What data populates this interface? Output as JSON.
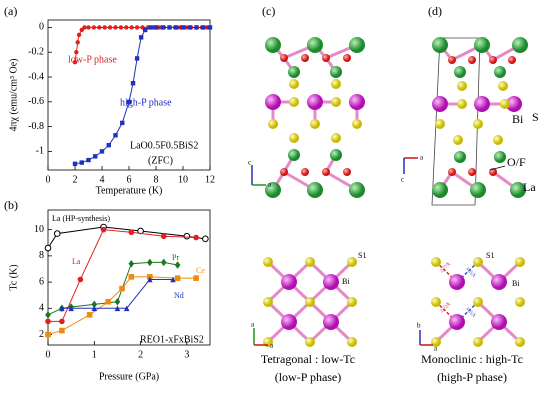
{
  "chart_data": [
    {
      "type": "line",
      "panel_label": "(a)",
      "xlabel": "Temperature (K)",
      "ylabel": "4πχ (emu/cm³ Oe)",
      "xlim": [
        0,
        12
      ],
      "xticks": [
        0,
        2,
        4,
        6,
        8,
        10,
        12
      ],
      "ylim": [
        -1.15,
        0.06
      ],
      "yticks": [
        0,
        -0.2,
        -0.4,
        -0.6,
        -0.8,
        -1
      ],
      "annotations": [
        {
          "text": "low-P phase",
          "color": "#e02020"
        },
        {
          "text": "high-P phase",
          "color": "#2030c0"
        },
        {
          "text": "LaO0.5F0.5BiS2",
          "color": "#000000"
        },
        {
          "text": "(ZFC)",
          "color": "#000000"
        }
      ],
      "series": [
        {
          "name": "low-P phase",
          "color": "#e02020",
          "marker": "circle",
          "x": [
            2.0,
            2.1,
            2.2,
            2.3,
            2.5,
            2.7,
            3.0,
            3.4,
            3.8,
            4.2,
            4.6,
            5.0,
            5.4,
            5.8,
            6.2,
            6.6,
            7.0,
            7.4,
            7.8,
            8.2,
            8.6,
            9.0,
            9.4,
            9.8,
            10.2,
            10.6,
            11.0,
            11.4,
            11.8
          ],
          "values": [
            -0.28,
            -0.2,
            -0.12,
            -0.06,
            -0.02,
            0,
            0,
            0,
            0,
            0,
            0,
            0,
            0,
            0,
            0,
            0,
            0,
            0,
            0,
            0,
            0,
            0,
            0,
            0,
            0,
            0,
            0,
            0,
            0
          ]
        },
        {
          "name": "high-P phase",
          "color": "#2030c0",
          "marker": "square",
          "x": [
            2.0,
            2.5,
            3.0,
            3.5,
            4.0,
            4.5,
            5.0,
            5.5,
            6.0,
            6.3,
            6.6,
            6.9,
            7.2,
            7.6,
            8.0,
            8.5,
            9.0,
            9.5,
            10.0,
            10.5,
            11.0,
            11.5,
            12.0
          ],
          "values": [
            -1.1,
            -1.09,
            -1.07,
            -1.04,
            -1.0,
            -0.95,
            -0.87,
            -0.77,
            -0.6,
            -0.45,
            -0.25,
            -0.08,
            -0.02,
            0,
            0,
            0,
            0,
            0,
            0,
            0,
            0,
            0,
            0
          ]
        }
      ]
    },
    {
      "type": "line",
      "panel_label": "(b)",
      "xlabel": "Pressure (GPa)",
      "ylabel": "Tc (K)",
      "xlim": [
        0,
        3.5
      ],
      "xticks": [
        0,
        1,
        2,
        3
      ],
      "ylim": [
        1.2,
        11.5
      ],
      "yticks": [
        2,
        4,
        6,
        8,
        10
      ],
      "annotations": [
        {
          "text": "REO1-xFxBiS2",
          "color": "#000000"
        }
      ],
      "series": [
        {
          "name": "La (HP-synthesis)",
          "color": "#000000",
          "marker": "circle-open",
          "x": [
            0,
            0.2,
            1.2,
            2.0,
            3.0,
            3.4
          ],
          "values": [
            8.6,
            9.7,
            10.2,
            9.9,
            9.5,
            9.3
          ]
        },
        {
          "name": "La",
          "color": "#e02020",
          "marker": "circle",
          "x": [
            0,
            0.3,
            0.7,
            1.2,
            1.8,
            2.5,
            3.2
          ],
          "values": [
            3.0,
            3.0,
            6.2,
            10.0,
            9.8,
            9.5,
            9.4
          ]
        },
        {
          "name": "Pr",
          "color": "#1a7a1a",
          "marker": "diamond",
          "x": [
            0,
            0.3,
            0.5,
            1.0,
            1.5,
            1.8,
            2.2,
            2.5,
            2.8
          ],
          "values": [
            3.5,
            4.0,
            4.1,
            4.3,
            4.5,
            7.4,
            7.5,
            7.5,
            7.3
          ]
        },
        {
          "name": "Ce",
          "color": "#f08a10",
          "marker": "square",
          "x": [
            0,
            0.3,
            0.9,
            1.3,
            1.6,
            1.8,
            2.2,
            2.8,
            3.2
          ],
          "values": [
            2.0,
            2.3,
            3.5,
            4.5,
            5.5,
            6.4,
            6.4,
            6.3,
            6.3
          ]
        },
        {
          "name": "Nd",
          "color": "#2030c0",
          "marker": "triangle",
          "x": [
            0.3,
            0.5,
            1.0,
            1.5,
            1.7,
            2.2,
            2.7
          ],
          "values": [
            4.0,
            4.0,
            4.0,
            4.0,
            4.0,
            6.2,
            6.2
          ]
        }
      ]
    }
  ],
  "panel_c": {
    "label": "(c)",
    "axes_top": [
      "c",
      "a"
    ],
    "axes_bottom": [
      "a",
      "a"
    ],
    "atoms": [
      "S1",
      "Bi"
    ],
    "caption": [
      "Tetragonal : low-Tc",
      "(low-P phase)"
    ]
  },
  "panel_d": {
    "label": "(d)",
    "atoms_top": [
      "Bi",
      "S",
      "O/F",
      "La"
    ],
    "axes_top": [
      "a",
      "c"
    ],
    "axes_bottom": [
      "b",
      "a"
    ],
    "atoms": [
      "S1",
      "Bi"
    ],
    "distances": [
      "2.77Å",
      "3.05Å",
      "2.72Å",
      "3.05Å"
    ],
    "caption": [
      "Monoclinic : high-Tc",
      "(high-P phase)"
    ]
  }
}
